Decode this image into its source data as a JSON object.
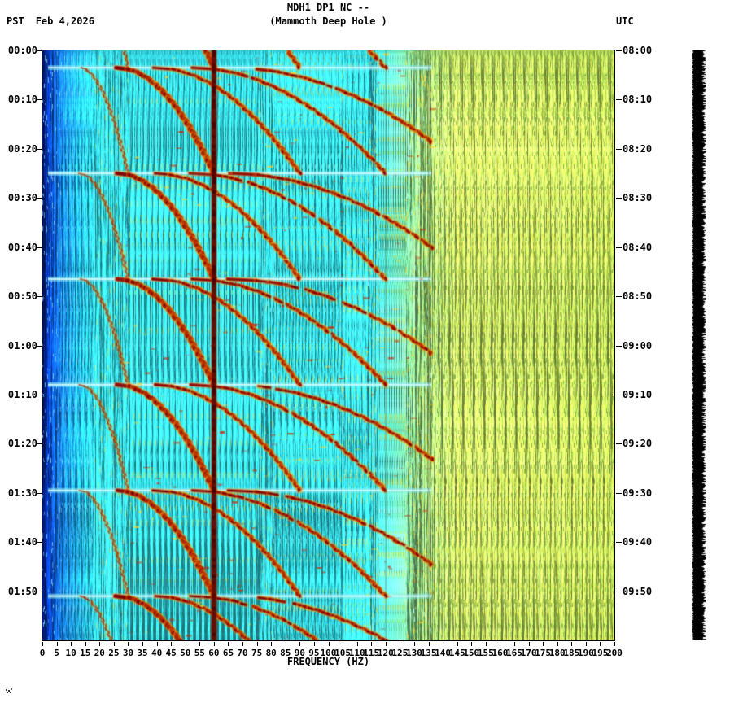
{
  "header": {
    "title": "MDH1 DP1 NC --",
    "subtitle": "(Mammoth Deep Hole )",
    "left_timezone": "PST",
    "date": "Feb 4,2026",
    "right_timezone": "UTC"
  },
  "chart_data": {
    "type": "heatmap",
    "title": "MDH1 DP1 NC --",
    "subtitle": "(Mammoth Deep Hole )",
    "station": "MDH1 DP1 NC (Mammoth Deep Hole)",
    "xlabel": "FREQUENCY (HZ)",
    "x_range_hz": [
      0,
      200
    ],
    "x_tick_step_hz": 5,
    "freq_tick_labels": [
      "0",
      "5",
      "10",
      "15",
      "20",
      "25",
      "30",
      "35",
      "40",
      "45",
      "50",
      "55",
      "60",
      "65",
      "70",
      "75",
      "80",
      "85",
      "90",
      "95",
      "100",
      "105",
      "110",
      "115",
      "120",
      "125",
      "130",
      "135",
      "140",
      "145",
      "150",
      "155",
      "160",
      "165",
      "170",
      "175",
      "180",
      "185",
      "190",
      "195",
      "200"
    ],
    "time_span_min": 120,
    "time_tick_step_min": 10,
    "left_time_labels": [
      "00:00",
      "00:10",
      "00:20",
      "00:30",
      "00:40",
      "00:50",
      "01:00",
      "01:10",
      "01:20",
      "01:30",
      "01:40",
      "01:50"
    ],
    "right_time_labels": [
      "08:00",
      "08:10",
      "08:20",
      "08:30",
      "08:40",
      "08:50",
      "09:00",
      "09:10",
      "09:20",
      "09:30",
      "09:40",
      "09:50"
    ],
    "colormap_hint": "jet-like (blue -> cyan -> green/yellow -> red)",
    "colormap": [
      "#001260",
      "#0a4ad0",
      "#1e90e6",
      "#30ccd4",
      "#b8d860",
      "#e8e840",
      "#cc2200",
      "#7a0000"
    ],
    "features": {
      "mains_hum_line_hz": 60,
      "faint_vertical_lines_hz": [
        120,
        135
      ],
      "short_dark_line": {
        "hz": 181,
        "from_min": 0,
        "to_min": 11
      },
      "episode_period_min": 21.5,
      "episode_starts_min": [
        -18,
        3.5,
        25,
        46.5,
        68,
        89.5,
        111
      ],
      "glide_fundamental_hz": [
        13,
        30
      ],
      "harmonics_drawn": [
        1,
        2,
        3,
        4,
        5
      ],
      "harmonic_band_max_hz": 136,
      "quiet_blue_band_hz": [
        0,
        18
      ],
      "high_band_hz": [
        140,
        200
      ]
    },
    "amplitude_bar": {
      "present": true,
      "color": "#000000"
    }
  }
}
